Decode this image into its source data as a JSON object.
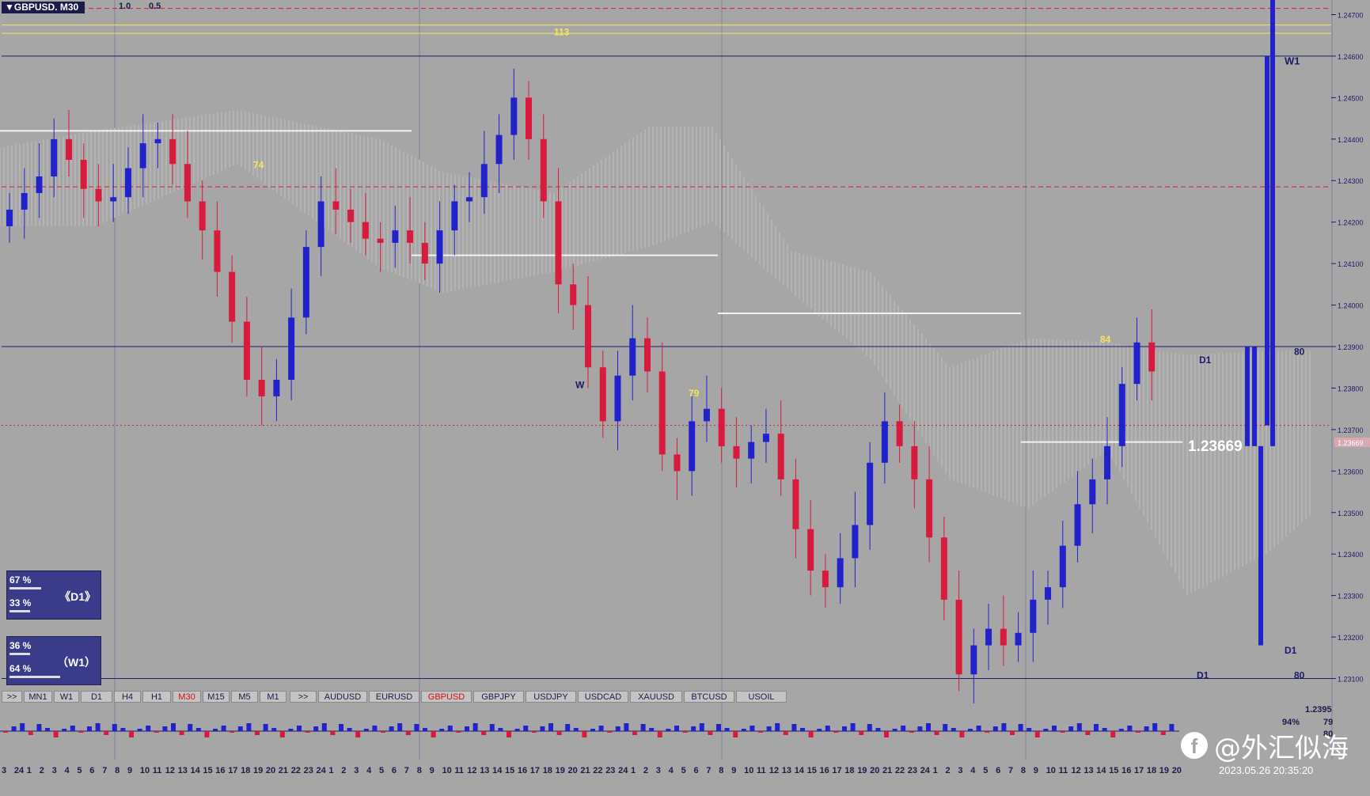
{
  "symbol_title": "▼GBPUSD. M30",
  "header_labels": [
    "1.0",
    "0.5"
  ],
  "price_axis": [
    "1.24700",
    "1.24600",
    "1.24500",
    "1.24400",
    "1.24300",
    "1.24200",
    "1.24100",
    "1.24000",
    "1.23900",
    "1.23800",
    "1.23700",
    "1.23600",
    "1.23500",
    "1.23400",
    "1.23300",
    "1.23200",
    "1.23100"
  ],
  "current_price_axis": "1.23669",
  "current_price_label": "1.23669",
  "chart_text": {
    "yellow_labels": [
      "113",
      "74",
      "84",
      "79"
    ],
    "w1_label": "W1",
    "d1_label": "D1",
    "eighty": "80",
    "w_label": "W"
  },
  "panel_d1": {
    "pct_top": "67 %",
    "pct_bottom": "33 %",
    "tf": "D1",
    "arrow_left": "《",
    "arrow_right": "》"
  },
  "panel_w1": {
    "pct_top": "36 %",
    "pct_bottom": "64 %",
    "tf": "W1",
    "arrow_left": "（",
    "arrow_right": "）"
  },
  "timeframe_tabs": [
    ">>",
    "MN1",
    "W1",
    "D1",
    "H4",
    "H1",
    "M30",
    "M15",
    "M5",
    "M1"
  ],
  "active_timeframe": "M30",
  "symbol_tabs": [
    ">>",
    "AUDUSD",
    "EURUSD",
    "GBPUSD",
    "GBPJPY",
    "USDJPY",
    "USDCAD",
    "XAUUSD",
    "BTCUSD",
    "USOIL"
  ],
  "active_symbol": "GBPUSD",
  "sub_values": [
    "1.2395",
    "94%",
    "79",
    "80"
  ],
  "time_labels": [
    "3",
    "24",
    "1",
    "2",
    "3",
    "4",
    "5",
    "6",
    "7",
    "8",
    "9",
    "10",
    "11",
    "12",
    "13",
    "14",
    "15",
    "16",
    "17",
    "18",
    "19",
    "20",
    "21",
    "22",
    "23",
    "24",
    "1",
    "2",
    "3",
    "4",
    "5",
    "6",
    "7",
    "8",
    "9",
    "10",
    "11",
    "12",
    "13",
    "14",
    "15",
    "16",
    "17",
    "18",
    "19",
    "20",
    "21",
    "22",
    "23",
    "24",
    "1",
    "2",
    "3",
    "4",
    "5",
    "6",
    "7",
    "8",
    "9",
    "10",
    "11",
    "12",
    "13",
    "14",
    "15",
    "16",
    "17",
    "18",
    "19",
    "20",
    "21",
    "22",
    "23",
    "24",
    "1",
    "2",
    "3",
    "4",
    "5",
    "6",
    "7",
    "8",
    "9",
    "10",
    "11",
    "12",
    "13",
    "14",
    "15",
    "16",
    "17",
    "18",
    "19",
    "20"
  ],
  "timestamp": "2023.05.26 20:35:20",
  "watermark": "@外汇似海",
  "watermark_icon": "facebook-icon",
  "colors": {
    "bull": "#2222cc",
    "bear": "#d81a3c",
    "cloud": "#c2c2c2",
    "yellow": "#f5e65a",
    "navy": "#1b1b6a",
    "background": "#a6a6a6"
  },
  "chart_data": {
    "type": "candlestick",
    "symbol": "GBPUSD",
    "timeframe": "M30",
    "y_range": [
      1.2308,
      1.2472
    ],
    "horizontal_levels": [
      {
        "price": 1.24715,
        "style": "dashed",
        "color": "#d81a3c"
      },
      {
        "price": 1.24675,
        "style": "solid",
        "color": "#f5e65a"
      },
      {
        "price": 1.24655,
        "style": "solid",
        "color": "#f5e65a"
      },
      {
        "price": 1.246,
        "style": "solid",
        "color": "#1b1b6a"
      },
      {
        "price": 1.24285,
        "style": "dashed",
        "color": "#d81a3c"
      },
      {
        "price": 1.239,
        "style": "solid",
        "color": "#1b1b6a"
      },
      {
        "price": 1.2371,
        "style": "dotted",
        "color": "#d81a3c"
      },
      {
        "price": 1.231,
        "style": "solid",
        "color": "#1b1b6a"
      }
    ],
    "close_path": [
      1.2423,
      1.2427,
      1.2431,
      1.244,
      1.2435,
      1.2428,
      1.2425,
      1.2426,
      1.2433,
      1.2439,
      1.244,
      1.2434,
      1.2425,
      1.2418,
      1.2408,
      1.2396,
      1.2382,
      1.2378,
      1.2382,
      1.2397,
      1.2414,
      1.2425,
      1.2423,
      1.242,
      1.2416,
      1.2415,
      1.2418,
      1.2415,
      1.241,
      1.2418,
      1.2425,
      1.2426,
      1.2434,
      1.2441,
      1.245,
      1.244,
      1.2425,
      1.2405,
      1.24,
      1.2385,
      1.2372,
      1.2383,
      1.2392,
      1.2384,
      1.2364,
      1.236,
      1.2372,
      1.2375,
      1.2366,
      1.2363,
      1.2367,
      1.2369,
      1.2358,
      1.2346,
      1.2336,
      1.2332,
      1.2339,
      1.2347,
      1.2362,
      1.2372,
      1.2366,
      1.2358,
      1.2344,
      1.2329,
      1.2311,
      1.2318,
      1.2322,
      1.2318,
      1.2321,
      1.2329,
      1.2332,
      1.2342,
      1.2352,
      1.2358,
      1.2366,
      1.2381,
      1.2391,
      1.2384
    ],
    "big_bars": [
      {
        "open": 1.2366,
        "close": 1.239
      },
      {
        "open": 1.2366,
        "close": 1.239
      },
      {
        "open": 1.2318,
        "close": 1.2366
      },
      {
        "open": 1.2371,
        "close": 1.246
      },
      {
        "open": 1.2366,
        "close": 1.2481
      }
    ]
  }
}
